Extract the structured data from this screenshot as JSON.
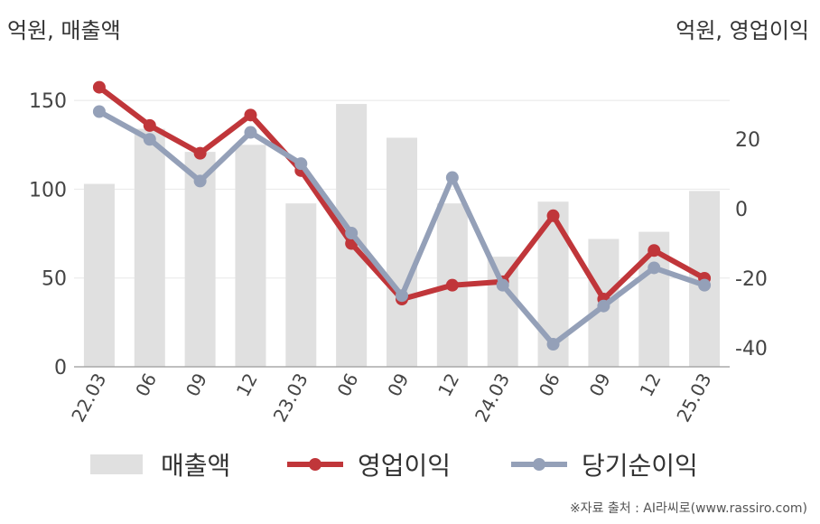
{
  "chart_data": {
    "type": "bar+line",
    "left_axis_label": "억원, 매출액",
    "right_axis_label": "억원, 영업이익",
    "categories": [
      "22.03",
      "06",
      "09",
      "12",
      "23.03",
      "06",
      "09",
      "12",
      "24.03",
      "06",
      "09",
      "12",
      "25.03"
    ],
    "left_axis": {
      "ticks": [
        0,
        50,
        100,
        150
      ],
      "range": [
        0,
        175
      ]
    },
    "right_axis": {
      "ticks": [
        -40,
        -20,
        0,
        20
      ],
      "range": [
        -45.5,
        44
      ]
    },
    "series": [
      {
        "name": "매출액",
        "type": "bar",
        "axis": "left",
        "color": "#e0e0e0",
        "values": [
          103,
          134,
          121,
          125,
          92,
          148,
          129,
          92,
          62,
          93,
          72,
          76,
          99
        ]
      },
      {
        "name": "영업이익",
        "type": "line",
        "axis": "right",
        "color": "#c0363a",
        "values": [
          35,
          24,
          16,
          27,
          11,
          -10,
          -26,
          -22,
          -21,
          -2,
          -26,
          -12,
          -20
        ]
      },
      {
        "name": "당기순이익",
        "type": "line",
        "axis": "right",
        "color": "#94a0b8",
        "values": [
          28,
          20,
          8,
          22,
          13,
          -7,
          -25,
          9,
          -22,
          -39,
          -28,
          -17,
          -22
        ]
      }
    ],
    "grid": "horizontal",
    "legend_position": "bottom"
  },
  "source_text": "※자료 출처 : AI라씨로(www.rassiro.com)"
}
